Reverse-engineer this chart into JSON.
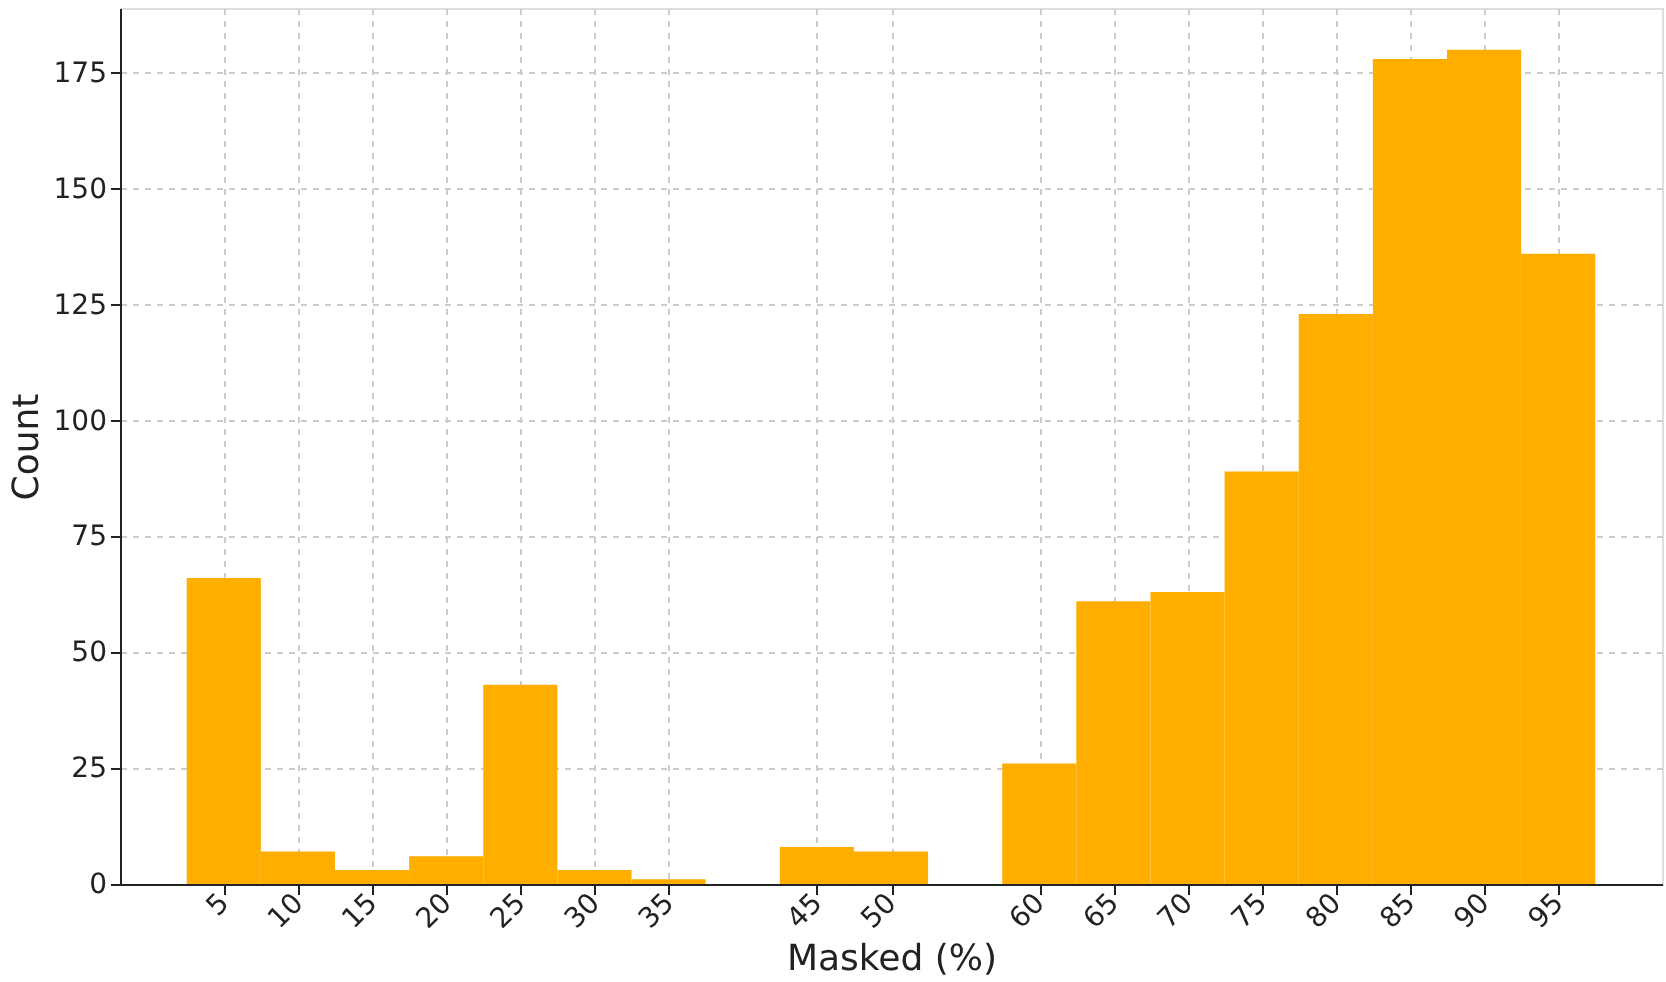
{
  "chart_data": {
    "type": "histogram",
    "xlabel": "Masked (%)",
    "ylabel": "Count",
    "bins": [
      2.5,
      7.5,
      12.5,
      17.5,
      22.5,
      27.5,
      32.5,
      37.5,
      42.5,
      47.5,
      52.5,
      57.5,
      62.5,
      67.5,
      72.5,
      77.5,
      82.5,
      87.5,
      92.5,
      97.5
    ],
    "values": [
      66,
      7,
      3,
      6,
      43,
      3,
      1,
      0,
      8,
      7,
      0,
      26,
      61,
      63,
      89,
      123,
      178,
      180,
      136
    ],
    "color": "#ffae00",
    "xlim": [
      -2,
      102
    ],
    "xticks": [
      5,
      10,
      15,
      20,
      25,
      30,
      35,
      45,
      50,
      60,
      65,
      70,
      75,
      80,
      85,
      90,
      95
    ],
    "ylim": [
      0,
      189
    ],
    "yticks": [
      0,
      25,
      50,
      75,
      100,
      125,
      150,
      175
    ],
    "grid": true
  }
}
